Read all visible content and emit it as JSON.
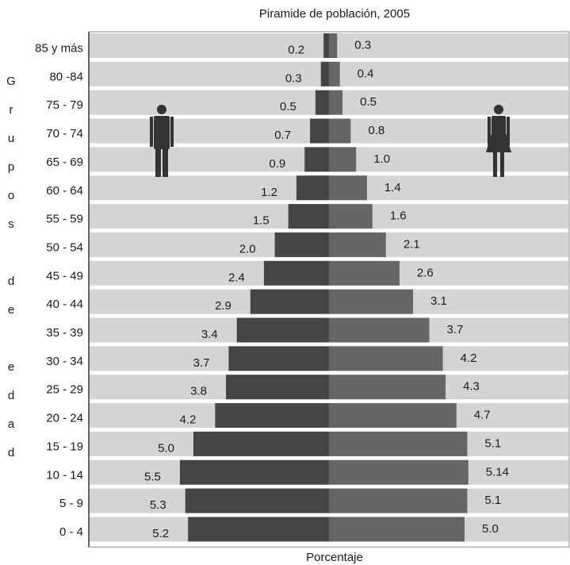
{
  "chart_data": {
    "type": "bar",
    "title": "Piramide de población, 2005",
    "xlabel": "Porcentaje",
    "ylabel": "Grupos de edad",
    "categories": [
      "85 y más",
      "80 -84",
      "75 - 79",
      "70 - 74",
      "65 - 69",
      "60 - 64",
      "55 - 59",
      "50 - 54",
      "45 - 49",
      "40 - 44",
      "35 - 39",
      "30 - 34",
      "25 - 29",
      "20 - 24",
      "15 - 19",
      "10 - 14",
      "5 - 9",
      "0 - 4"
    ],
    "series": [
      {
        "name": "",
        "side": "left",
        "color": "#454545",
        "values": [
          0.2,
          0.3,
          0.5,
          0.7,
          0.9,
          1.2,
          1.5,
          2.0,
          2.4,
          2.9,
          3.4,
          3.7,
          3.8,
          4.2,
          5.0,
          5.5,
          5.3,
          5.2
        ],
        "labels": [
          "0.2",
          "0.3",
          "0.5",
          "0.7",
          "0.9",
          "1.2",
          "1.5",
          "2.0",
          "2.4",
          "2.9",
          "3.4",
          "3.7",
          "3.8",
          "4.2",
          "5.0",
          "5.5",
          "5.3",
          "5.2"
        ]
      },
      {
        "name": "",
        "side": "right",
        "color": "#666666",
        "values": [
          0.3,
          0.4,
          0.5,
          0.8,
          1.0,
          1.4,
          1.6,
          2.1,
          2.6,
          3.1,
          3.7,
          4.2,
          4.3,
          4.7,
          5.1,
          5.14,
          5.1,
          5.0
        ],
        "labels": [
          "0.3",
          "0.4",
          "0.5",
          "0.8",
          "1.0",
          "1.4",
          "1.6",
          "2.1",
          "2.6",
          "3.1",
          "3.7",
          "4.2",
          "4.3",
          "4.7",
          "5.1",
          "5.14",
          "5.1",
          "5.0"
        ]
      }
    ],
    "row_background": "#d4d4d4",
    "icons": [
      "male-figure-icon",
      "female-figure-icon"
    ]
  }
}
